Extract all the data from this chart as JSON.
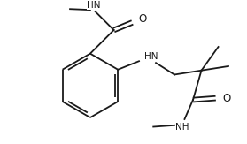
{
  "background": "#ffffff",
  "line_color": "#1a1a1a",
  "line_width": 1.3,
  "font_size": 7.5,
  "figsize": [
    2.79,
    1.63
  ],
  "dpi": 100,
  "xlim": [
    0,
    279
  ],
  "ylim": [
    0,
    163
  ]
}
